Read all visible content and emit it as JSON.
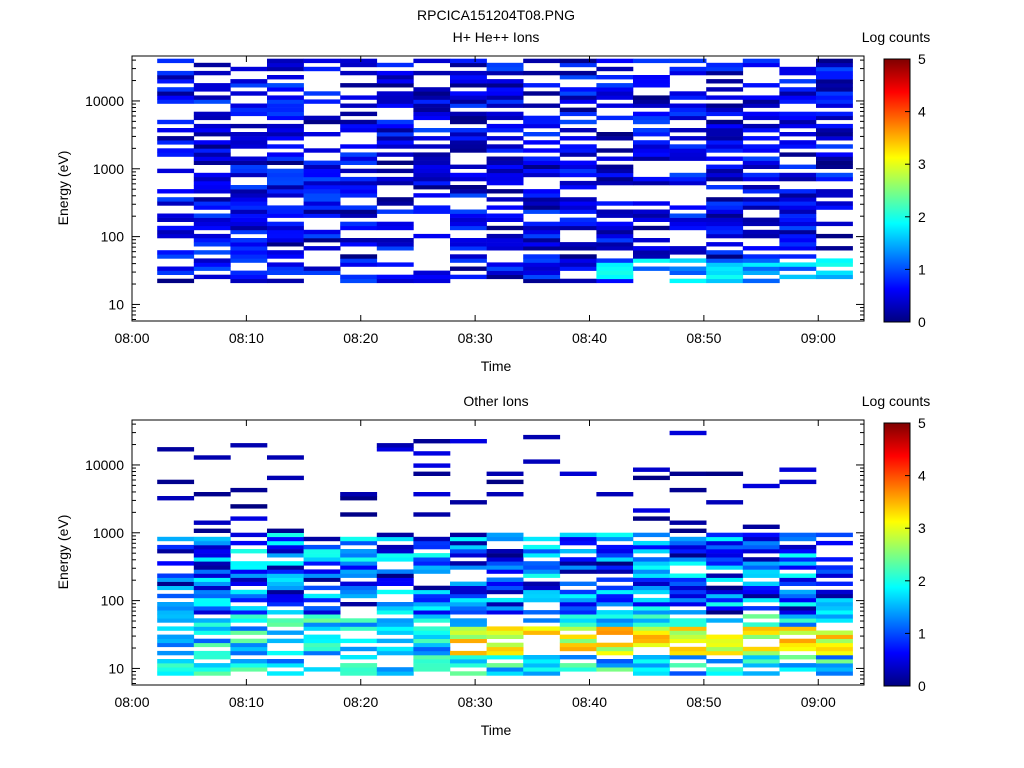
{
  "figure": {
    "title": "RPCICA151204T08.PNG"
  },
  "colorscale": [
    "#00007f",
    "#0000ff",
    "#007fff",
    "#00ffff",
    "#7fff7f",
    "#ffff00",
    "#ff7f00",
    "#ff0000",
    "#7f0000"
  ],
  "chart_data": [
    {
      "type": "heatmap",
      "title": "H+ He++ Ions",
      "xlabel": "Time",
      "ylabel": "Energy (eV)",
      "x_ticks": [
        "08:00",
        "08:10",
        "08:20",
        "08:30",
        "08:40",
        "08:50",
        "09:00"
      ],
      "y_ticks": [
        "10",
        "100",
        "1000",
        "10000"
      ],
      "y_scale": "log",
      "ylim": [
        5.7,
        46000
      ],
      "xlim_minutes": [
        0,
        64
      ],
      "colorbar": {
        "label": "Log counts",
        "ticks": [
          "0",
          "1",
          "2",
          "3",
          "4",
          "5"
        ],
        "range": [
          0,
          5
        ]
      },
      "time_bins_start_minutes": [
        2.2,
        5.4,
        8.6,
        11.8,
        15.0,
        18.2,
        21.4,
        24.6,
        27.8,
        31.0,
        34.2,
        37.4,
        40.6,
        43.8,
        47.0,
        50.2,
        53.4,
        56.6,
        59.8
      ],
      "time_bin_width_minutes": 3.2,
      "energy_range_eV": [
        6,
        42000
      ],
      "energy_rows": 64,
      "summary": [
        {
          "time_range_minutes": [
            2.2,
            63.0
          ],
          "energy_range_eV": [
            20,
            42000
          ],
          "log_counts_range": [
            0.0,
            1.0
          ]
        },
        {
          "time_range_minutes": [
            43.8,
            63.0
          ],
          "energy_range_eV": [
            20,
            45
          ],
          "log_counts_range": [
            1.0,
            2.0
          ]
        },
        {
          "time_range_minutes": [
            40.6,
            43.8
          ],
          "energy_range_eV": [
            25,
            40
          ],
          "log_counts_range": [
            1.8,
            2.0
          ]
        }
      ]
    },
    {
      "type": "heatmap",
      "title": "Other Ions",
      "xlabel": "Time",
      "ylabel": "Energy (eV)",
      "x_ticks": [
        "08:00",
        "08:10",
        "08:20",
        "08:30",
        "08:40",
        "08:50",
        "09:00"
      ],
      "y_ticks": [
        "10",
        "100",
        "1000",
        "10000"
      ],
      "y_scale": "log",
      "ylim": [
        5.7,
        46000
      ],
      "xlim_minutes": [
        0,
        64
      ],
      "colorbar": {
        "label": "Log counts",
        "ticks": [
          "0",
          "1",
          "2",
          "3",
          "4",
          "5"
        ],
        "range": [
          0,
          5
        ]
      },
      "time_bins_start_minutes": [
        2.2,
        5.4,
        8.6,
        11.8,
        15.0,
        18.2,
        21.4,
        24.6,
        27.8,
        31.0,
        34.2,
        37.4,
        40.6,
        43.8,
        47.0,
        50.2,
        53.4,
        56.6,
        59.8
      ],
      "time_bin_width_minutes": 3.2,
      "energy_range_eV": [
        6,
        42000
      ],
      "energy_rows": 64,
      "summary": [
        {
          "time_range_minutes": [
            2.2,
            63.0
          ],
          "energy_range_eV": [
            8,
            60
          ],
          "log_counts_range": [
            1.0,
            2.5
          ]
        },
        {
          "time_range_minutes": [
            27.8,
            63.0
          ],
          "energy_range_eV": [
            15,
            40
          ],
          "log_counts_range": [
            2.5,
            3.6
          ]
        },
        {
          "time_range_minutes": [
            40.6,
            43.8
          ],
          "energy_range_eV": [
            25,
            40
          ],
          "log_counts_range": [
            3.4,
            3.7
          ]
        },
        {
          "time_range_minutes": [
            2.2,
            63.0
          ],
          "energy_range_eV": [
            60,
            1000
          ],
          "log_counts_range": [
            0.0,
            2.0
          ]
        },
        {
          "time_range_minutes": [
            2.2,
            63.0
          ],
          "energy_range_eV": [
            1000,
            30000
          ],
          "log_counts_range": [
            0.0,
            0.5
          ]
        }
      ]
    }
  ]
}
